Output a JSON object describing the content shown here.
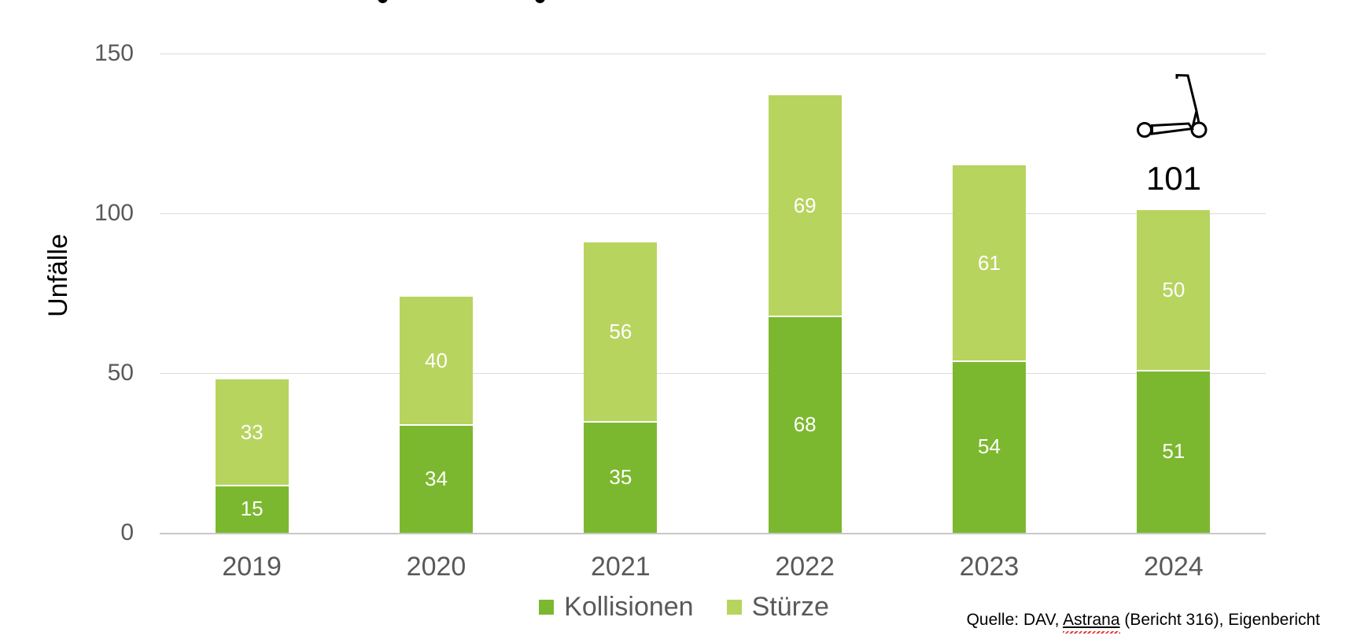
{
  "chart_data": {
    "type": "bar",
    "stacked": true,
    "categories": [
      "2019",
      "2020",
      "2021",
      "2022",
      "2023",
      "2024"
    ],
    "series": [
      {
        "name": "Kollisionen",
        "color": "#7CB82F",
        "values": [
          15,
          34,
          35,
          68,
          54,
          51
        ]
      },
      {
        "name": "Stürze",
        "color": "#B7D45F",
        "values": [
          33,
          40,
          56,
          69,
          61,
          50
        ]
      }
    ],
    "ylabel": "Unfälle",
    "xlabel": "",
    "ylim": [
      0,
      150
    ],
    "yticks": [
      150,
      100,
      50,
      0
    ],
    "grid": true,
    "legend_position": "bottom-center",
    "annotations": [
      {
        "category": "2024",
        "text": "101",
        "icon": "kick-scooter-icon"
      }
    ]
  },
  "source": {
    "prefix": "Quelle: DAV, ",
    "word": "Astrana",
    "suffix": " (Bericht 316), Eigenbericht",
    "full_text": "Quelle: DAV, Astrana (Bericht 316), Eigenbericht"
  },
  "colors": {
    "kollisionen": "#7CB82F",
    "stuerze": "#B7D45F",
    "axis_text": "#595959",
    "gridline": "#DCDCDC",
    "baseline": "#C8C8C8",
    "value_label_text": "#FFFFFF",
    "spellcheck_wave": "#E03C31"
  }
}
